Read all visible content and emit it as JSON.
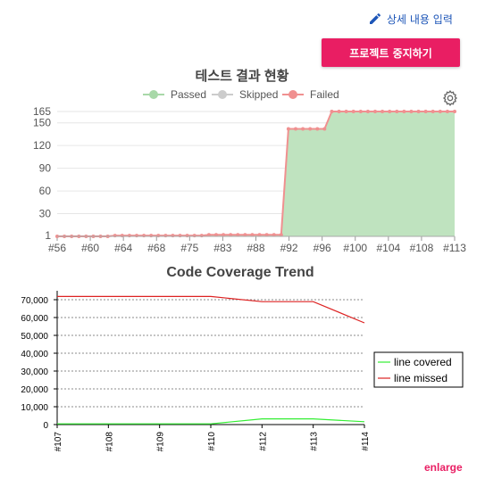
{
  "header": {
    "detail_link_label": "상세 내용 입력",
    "detail_icon": "pencil-icon",
    "stop_button_label": "프로젝트 중지하기",
    "settings_icon": "gear-icon",
    "enlarge_label": "enlarge"
  },
  "colors": {
    "accent": "#e91e63",
    "link": "#1e56b8",
    "passed_fill": "#bfe3bf",
    "passed_legend": "#a8d8a8",
    "skipped_legend": "#cccccc",
    "failed_line": "#f09090",
    "covered_line": "#33ee33",
    "missed_line": "#dd2222"
  },
  "chart_data": [
    {
      "type": "area",
      "title": "테스트 결과 현황",
      "legend": [
        "Passed",
        "Skipped",
        "Failed"
      ],
      "legend_position": "top-center",
      "x_tick_labels": [
        "#56",
        "#60",
        "#64",
        "#68",
        "#75",
        "#83",
        "#88",
        "#92",
        "#96",
        "#100",
        "#104",
        "#108",
        "#113"
      ],
      "y_ticks": [
        1,
        30,
        60,
        90,
        120,
        150,
        165
      ],
      "ylim": [
        0,
        165
      ],
      "grid": true,
      "series": [
        {
          "name": "Passed",
          "values": [
            0,
            0,
            0,
            0,
            0,
            0,
            0,
            0,
            1,
            1,
            1,
            1,
            1,
            1,
            1,
            1,
            1,
            1,
            1,
            1,
            1,
            2,
            2,
            2,
            2,
            2,
            2,
            2,
            2,
            2,
            2,
            2,
            142,
            142,
            142,
            142,
            142,
            142,
            165,
            165,
            165,
            165,
            165,
            165,
            165,
            165,
            165,
            165,
            165,
            165,
            165,
            165,
            165,
            165,
            165,
            165
          ]
        },
        {
          "name": "Failed",
          "values": [
            0,
            0,
            0,
            0,
            0,
            0,
            0,
            0,
            1,
            1,
            1,
            1,
            1,
            1,
            1,
            1,
            1,
            1,
            1,
            1,
            1,
            2,
            2,
            2,
            2,
            2,
            2,
            2,
            2,
            2,
            2,
            2,
            142,
            142,
            142,
            142,
            142,
            142,
            165,
            165,
            165,
            165,
            165,
            165,
            165,
            165,
            165,
            165,
            165,
            165,
            165,
            165,
            165,
            165,
            165,
            165
          ]
        }
      ]
    },
    {
      "type": "line",
      "title": "Code Coverage Trend",
      "categories": [
        "#107",
        "#108",
        "#109",
        "#110",
        "#112",
        "#113",
        "#114"
      ],
      "y_ticks": [
        "0",
        "10,000",
        "20,000",
        "30,000",
        "40,000",
        "50,000",
        "60,000",
        "70,000"
      ],
      "ylim": [
        0,
        75000
      ],
      "grid": "dashed-horizontal",
      "legend_position": "right",
      "series": [
        {
          "name": "line covered",
          "values": [
            400,
            400,
            400,
            400,
            3200,
            3200,
            1600
          ]
        },
        {
          "name": "line missed",
          "values": [
            71800,
            71800,
            71800,
            71800,
            68900,
            68900,
            57000
          ]
        }
      ]
    }
  ]
}
